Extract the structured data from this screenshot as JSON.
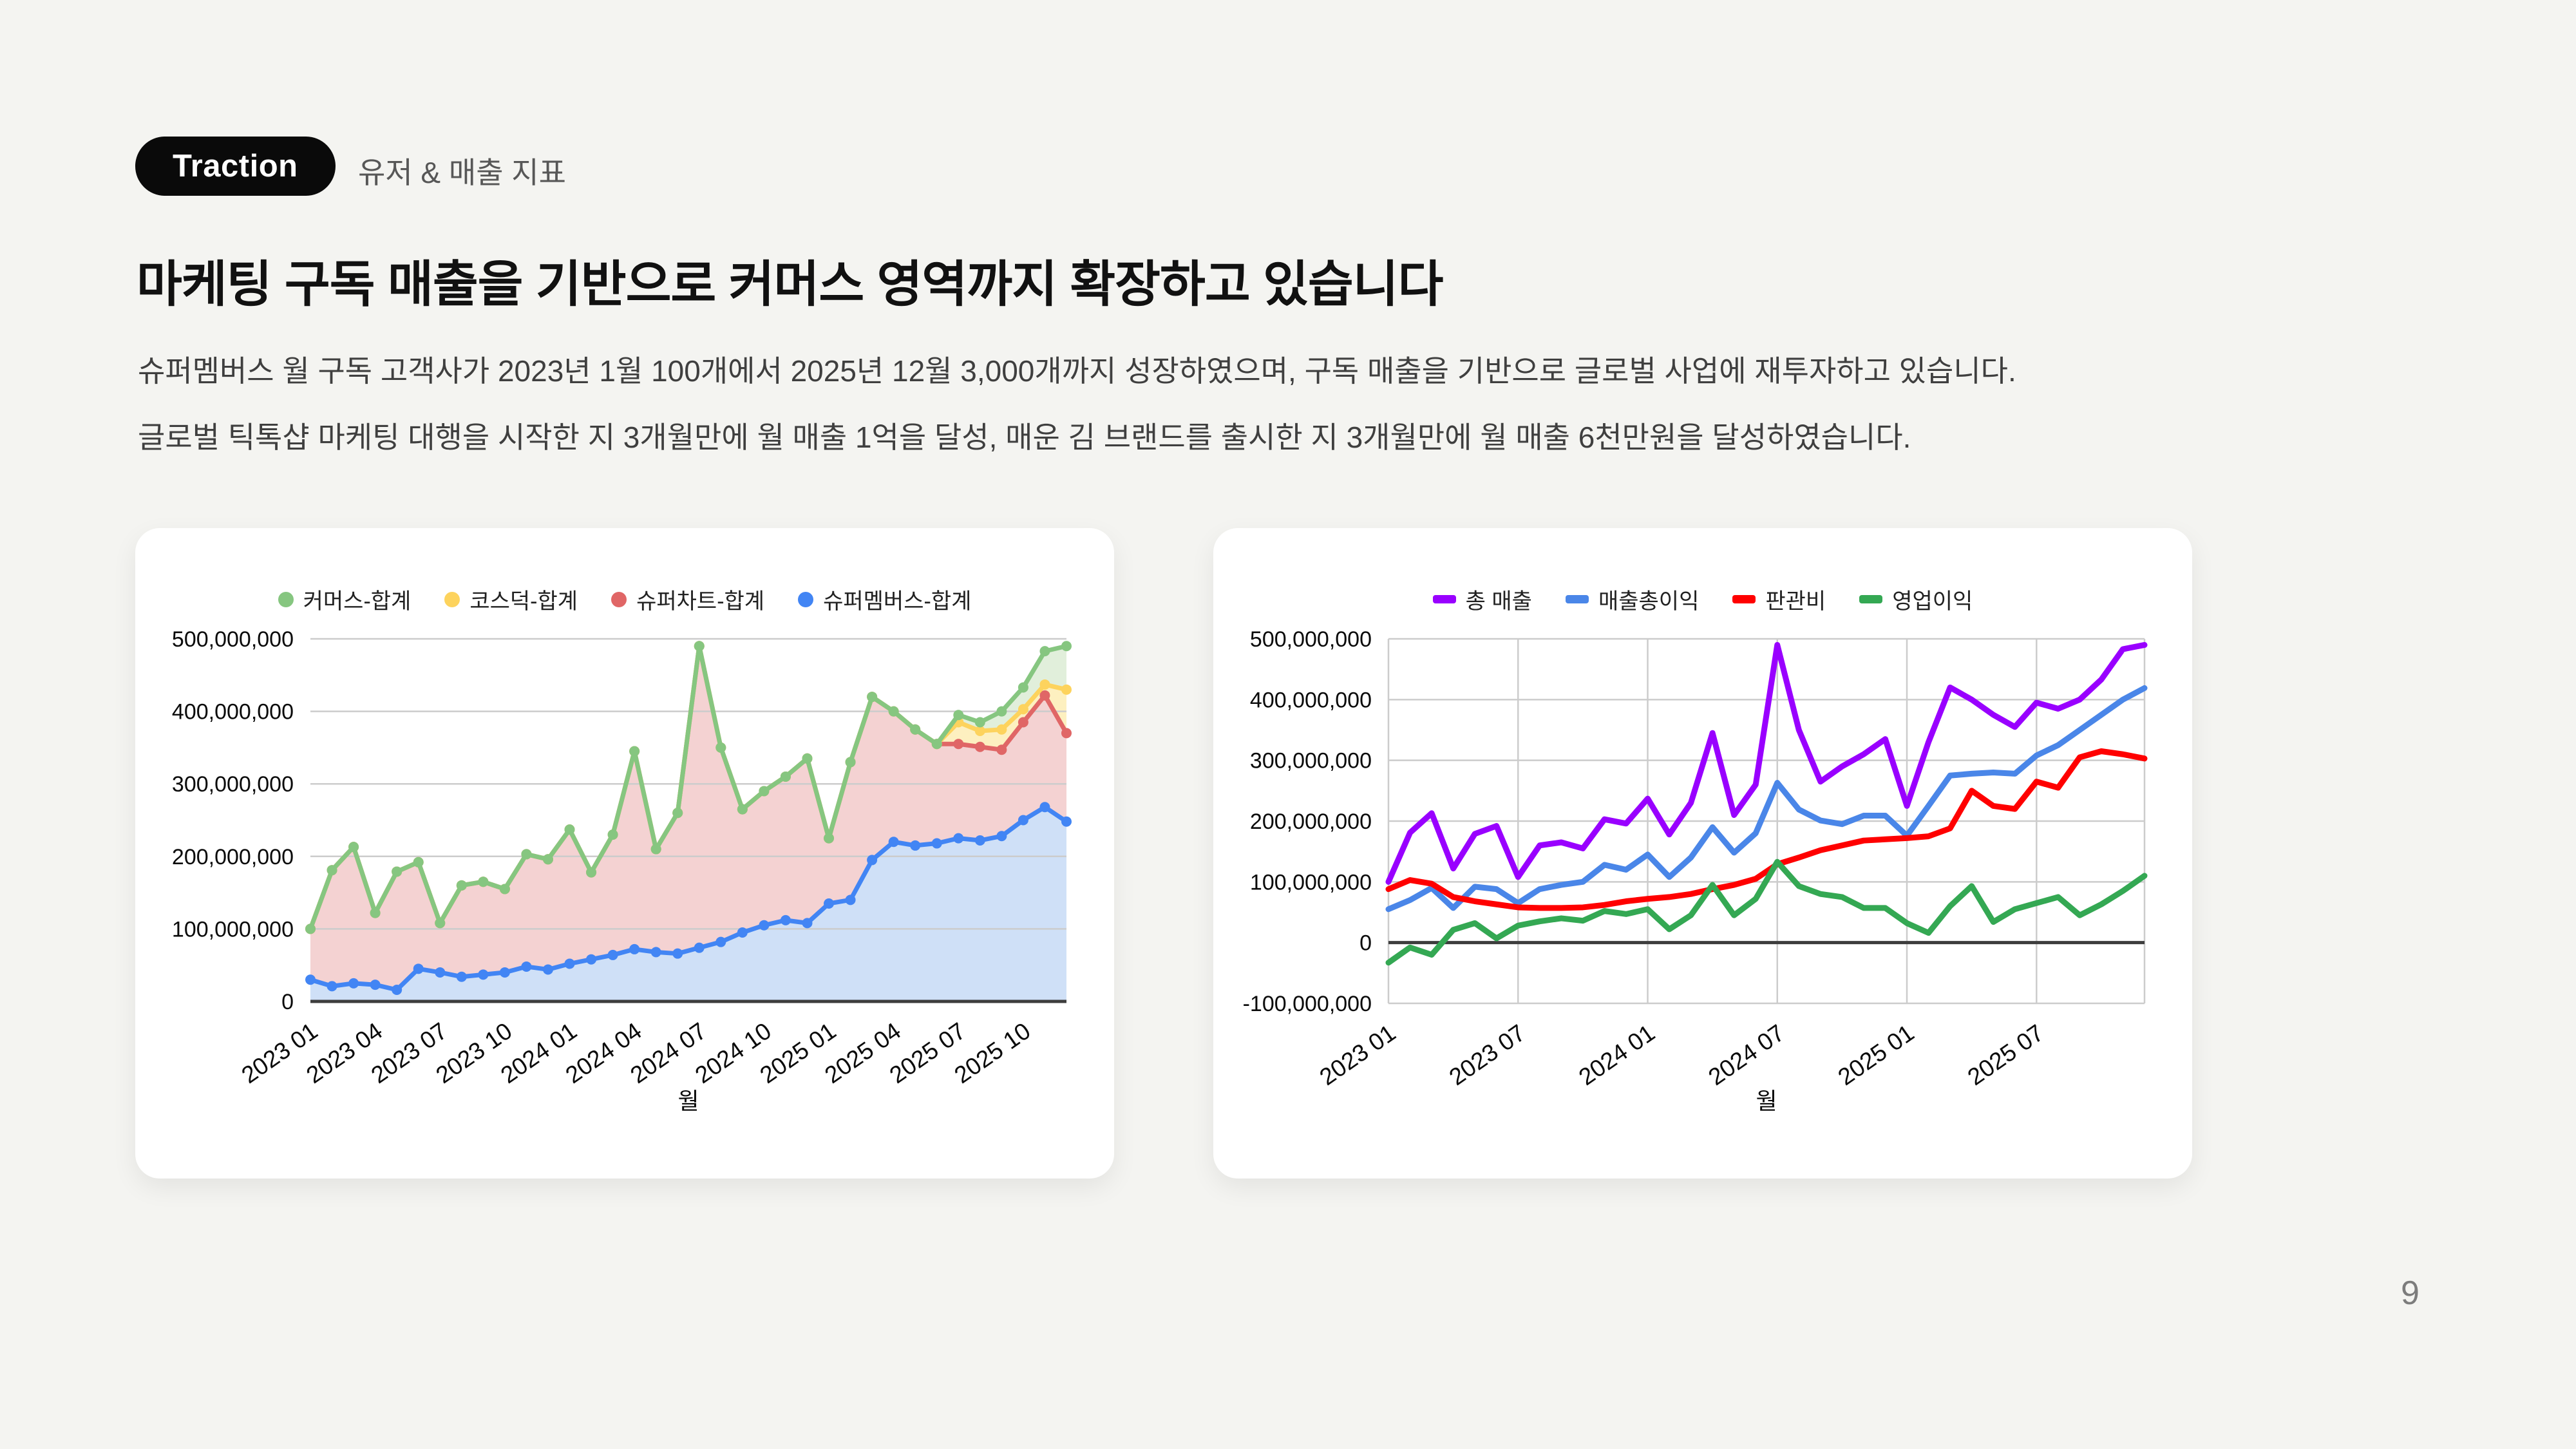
{
  "page": {
    "background_color": "#f4f4f1",
    "page_number": "9"
  },
  "header": {
    "badge": "Traction",
    "subtitle": "유저 & 매출 지표",
    "title": "마케팅 구독 매출을 기반으로 커머스 영역까지 확장하고 있습니다",
    "body_lines": [
      "슈퍼멤버스 월 구독 고객사가 2023년 1월 100개에서 2025년 12월 3,000개까지 성장하였으며, 구독 매출을 기반으로 글로벌 사업에 재투자하고 있습니다.",
      "글로벌 틱톡샵 마케팅 대행을 시작한 지 3개월만에 월 매출 1억을 달성, 매운 김 브랜드를 출시한 지 3개월만에 월 매출 6천만원을 달성하였습니다."
    ]
  },
  "colors": {
    "grid": "#cccccc",
    "zero_axis": "#3d3d3d",
    "axis_text": "#0a0a0a",
    "legend_text": "#212121"
  },
  "chart_data": [
    {
      "type": "stacked-area",
      "title": "",
      "xlabel": "월",
      "ylabel": "",
      "value_unit": 1000000,
      "ylim": [
        0,
        500000000
      ],
      "y_ticks": [
        "0",
        "100,000,000",
        "200,000,000",
        "300,000,000",
        "400,000,000",
        "500,000,000"
      ],
      "x_ticks": [
        "2023 01",
        "2023 04",
        "2023 07",
        "2023 10",
        "2024 01",
        "2024 04",
        "2024 07",
        "2024 10",
        "2025 01",
        "2025 04",
        "2025 07",
        "2025 10"
      ],
      "months": [
        "2023 01",
        "2023 02",
        "2023 03",
        "2023 04",
        "2023 05",
        "2023 06",
        "2023 07",
        "2023 08",
        "2023 09",
        "2023 10",
        "2023 11",
        "2023 12",
        "2024 01",
        "2024 02",
        "2024 03",
        "2024 04",
        "2024 05",
        "2024 06",
        "2024 07",
        "2024 08",
        "2024 09",
        "2024 10",
        "2024 11",
        "2024 12",
        "2025 01",
        "2025 02",
        "2025 03",
        "2025 04",
        "2025 05",
        "2025 06",
        "2025 07",
        "2025 08",
        "2025 09",
        "2025 10",
        "2025 11",
        "2025 12"
      ],
      "legend_position": "top",
      "grid": "horizontal",
      "stacking_note": "series listed in legend order; stacked bottom-up in reverse order (values are band sizes in millions of KRW)",
      "series": [
        {
          "name": "커머스-합계",
          "color": "#86c680",
          "fill": "#e1efdb",
          "values": [
            0,
            0,
            0,
            0,
            0,
            0,
            0,
            0,
            0,
            0,
            0,
            0,
            0,
            0,
            0,
            0,
            0,
            0,
            0,
            0,
            0,
            0,
            0,
            0,
            0,
            0,
            0,
            0,
            0,
            0,
            10,
            12,
            25,
            30,
            46,
            60
          ]
        },
        {
          "name": "코스덕-합계",
          "color": "#fdd35d",
          "fill": "#fdf0c0",
          "values": [
            0,
            0,
            0,
            0,
            0,
            0,
            0,
            0,
            0,
            0,
            0,
            0,
            0,
            0,
            0,
            0,
            0,
            0,
            0,
            0,
            0,
            0,
            0,
            0,
            0,
            0,
            0,
            0,
            0,
            0,
            30,
            22,
            28,
            18,
            15,
            60
          ]
        },
        {
          "name": "슈퍼차트-합계",
          "color": "#e06666",
          "fill": "#f4d2d2",
          "values": [
            70,
            160,
            188,
            99,
            163,
            147,
            68,
            126,
            128,
            115,
            155,
            152,
            185,
            120,
            166,
            273,
            142,
            194,
            416,
            268,
            170,
            185,
            198,
            227,
            90,
            190,
            225,
            180,
            160,
            137,
            130,
            129,
            119,
            135,
            154,
            122
          ]
        },
        {
          "name": "슈퍼멤버스-합계",
          "color": "#4285f4",
          "fill": "#cfe0f7",
          "values": [
            30,
            21,
            25,
            23,
            16,
            45,
            40,
            34,
            37,
            40,
            48,
            44,
            52,
            58,
            64,
            72,
            68,
            66,
            74,
            82,
            95,
            105,
            112,
            108,
            135,
            140,
            195,
            220,
            215,
            218,
            225,
            222,
            228,
            250,
            268,
            248
          ]
        }
      ]
    },
    {
      "type": "line",
      "title": "",
      "xlabel": "월",
      "ylabel": "",
      "value_unit": 1000000,
      "ylim": [
        -100000000,
        500000000
      ],
      "y_ticks": [
        "-100,000,000",
        "0",
        "100,000,000",
        "200,000,000",
        "300,000,000",
        "400,000,000",
        "500,000,000"
      ],
      "x_ticks": [
        "2023 01",
        "2023 07",
        "2024 01",
        "2024 07",
        "2025 01",
        "2025 07"
      ],
      "months": [
        "2023 01",
        "2023 02",
        "2023 03",
        "2023 04",
        "2023 05",
        "2023 06",
        "2023 07",
        "2023 08",
        "2023 09",
        "2023 10",
        "2023 11",
        "2023 12",
        "2024 01",
        "2024 02",
        "2024 03",
        "2024 04",
        "2024 05",
        "2024 06",
        "2024 07",
        "2024 08",
        "2024 09",
        "2024 10",
        "2024 11",
        "2024 12",
        "2025 01",
        "2025 02",
        "2025 03",
        "2025 04",
        "2025 05",
        "2025 06",
        "2025 07",
        "2025 08",
        "2025 09",
        "2025 10",
        "2025 11",
        "2025 12"
      ],
      "legend_position": "top",
      "grid": "both",
      "values_note": "values in millions of KRW",
      "series": [
        {
          "name": "총 매출",
          "color": "#9900ff",
          "values": [
            100,
            181,
            213,
            122,
            179,
            192,
            108,
            160,
            165,
            155,
            203,
            196,
            237,
            178,
            230,
            345,
            210,
            260,
            490,
            350,
            265,
            290,
            310,
            335,
            225,
            330,
            420,
            400,
            375,
            355,
            395,
            385,
            400,
            433,
            483,
            490
          ]
        },
        {
          "name": "매출총이익",
          "color": "#4a86e8",
          "values": [
            55,
            70,
            90,
            57,
            92,
            88,
            65,
            88,
            95,
            100,
            128,
            120,
            145,
            108,
            140,
            190,
            148,
            180,
            263,
            219,
            201,
            195,
            209,
            209,
            176,
            225,
            275,
            278,
            280,
            278,
            308,
            325,
            350,
            375,
            400,
            419
          ]
        },
        {
          "name": "판관비",
          "color": "#ff0000",
          "values": [
            88,
            103,
            97,
            75,
            68,
            63,
            58,
            57,
            57,
            58,
            62,
            68,
            72,
            75,
            80,
            88,
            95,
            105,
            129,
            140,
            152,
            160,
            168,
            170,
            172,
            175,
            188,
            250,
            225,
            220,
            265,
            255,
            305,
            315,
            310,
            303
          ]
        },
        {
          "name": "영업이익",
          "color": "#34a853",
          "values": [
            -33,
            -8,
            -20,
            21,
            32,
            7,
            28,
            35,
            40,
            36,
            52,
            47,
            55,
            22,
            45,
            95,
            45,
            72,
            133,
            93,
            80,
            75,
            57,
            57,
            32,
            16,
            60,
            93,
            34,
            55,
            65,
            75,
            45,
            63,
            85,
            110
          ]
        }
      ]
    }
  ]
}
